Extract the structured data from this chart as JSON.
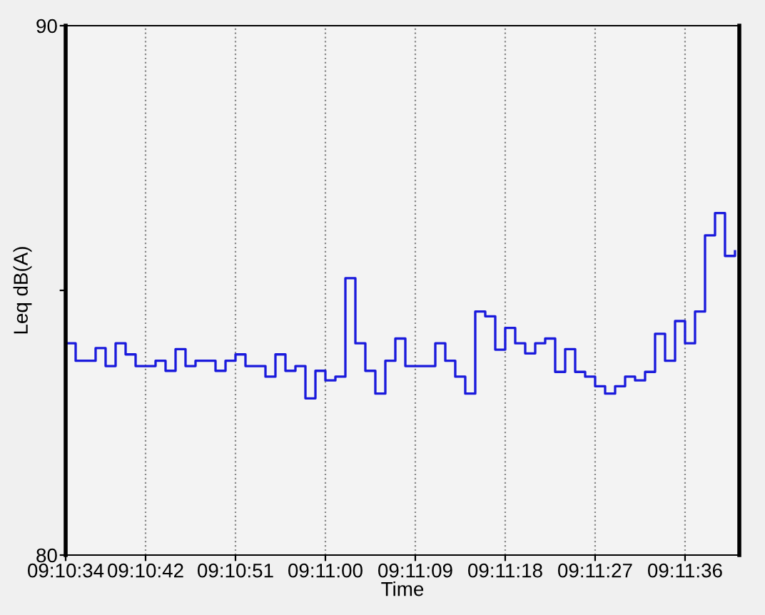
{
  "chart_data": {
    "type": "step",
    "xlabel": "Time",
    "ylabel": "Leq dB(A)",
    "x": [
      9.176111,
      9.176389,
      9.176667,
      9.176944,
      9.177222,
      9.1775,
      9.177778,
      9.178056,
      9.178333,
      9.178611,
      9.178889,
      9.179167,
      9.179444,
      9.179722,
      9.18,
      9.180278,
      9.180556,
      9.180833,
      9.181111,
      9.181389,
      9.181667,
      9.181944,
      9.182222,
      9.1825,
      9.182778,
      9.183056,
      9.183333,
      9.183611,
      9.183889,
      9.184167,
      9.184444,
      9.184722,
      9.185,
      9.185278,
      9.185556,
      9.185833,
      9.186111,
      9.186389,
      9.186667,
      9.186944,
      9.187222,
      9.1875,
      9.187778,
      9.188056,
      9.188333,
      9.188611,
      9.188889,
      9.189167,
      9.189444,
      9.189722,
      9.19,
      9.190278,
      9.190556,
      9.190833,
      9.191111,
      9.191389,
      9.191667,
      9.191944,
      9.192222,
      9.1925,
      9.192778,
      9.193056,
      9.193333,
      9.193611,
      9.193889,
      9.194167,
      9.194444,
      9.194722
    ],
    "series": [
      {
        "color": "#1a1adc",
        "values": [
          84.0,
          83.67,
          83.67,
          83.91,
          83.57,
          84.0,
          83.79,
          83.57,
          83.57,
          83.67,
          83.48,
          83.89,
          83.57,
          83.67,
          83.67,
          83.48,
          83.67,
          83.79,
          83.57,
          83.57,
          83.37,
          83.79,
          83.48,
          83.57,
          82.96,
          83.48,
          83.3,
          83.37,
          85.23,
          84.0,
          83.48,
          83.05,
          83.67,
          84.09,
          83.57,
          83.57,
          83.57,
          84.0,
          83.67,
          83.37,
          83.05,
          84.6,
          84.51,
          83.88,
          84.29,
          84.0,
          83.81,
          84.0,
          84.09,
          83.46,
          83.89,
          83.46,
          83.37,
          83.19,
          83.05,
          83.19,
          83.37,
          83.3,
          83.46,
          84.18,
          83.67,
          84.42,
          84.0,
          84.6,
          86.04,
          86.46,
          85.65,
          85.74
        ]
      }
    ],
    "xlim": [
      9.176111,
      9.194842
    ],
    "xticks": [
      {
        "value": 9.176111,
        "label": "09:10:34"
      },
      {
        "value": 9.178333,
        "label": "09:10:42"
      },
      {
        "value": 9.180833,
        "label": "09:10:51"
      },
      {
        "value": 9.183333,
        "label": "09:11:00"
      },
      {
        "value": 9.185833,
        "label": "09:11:09"
      },
      {
        "value": 9.188333,
        "label": "09:11:18"
      },
      {
        "value": 9.190833,
        "label": "09:11:27"
      },
      {
        "value": 9.193333,
        "label": "09:11:36"
      }
    ],
    "ylim": [
      80,
      90
    ],
    "yticks": [
      80,
      {
        "value": 85,
        "label": null
      },
      90
    ],
    "grid": "x",
    "legend": false
  }
}
